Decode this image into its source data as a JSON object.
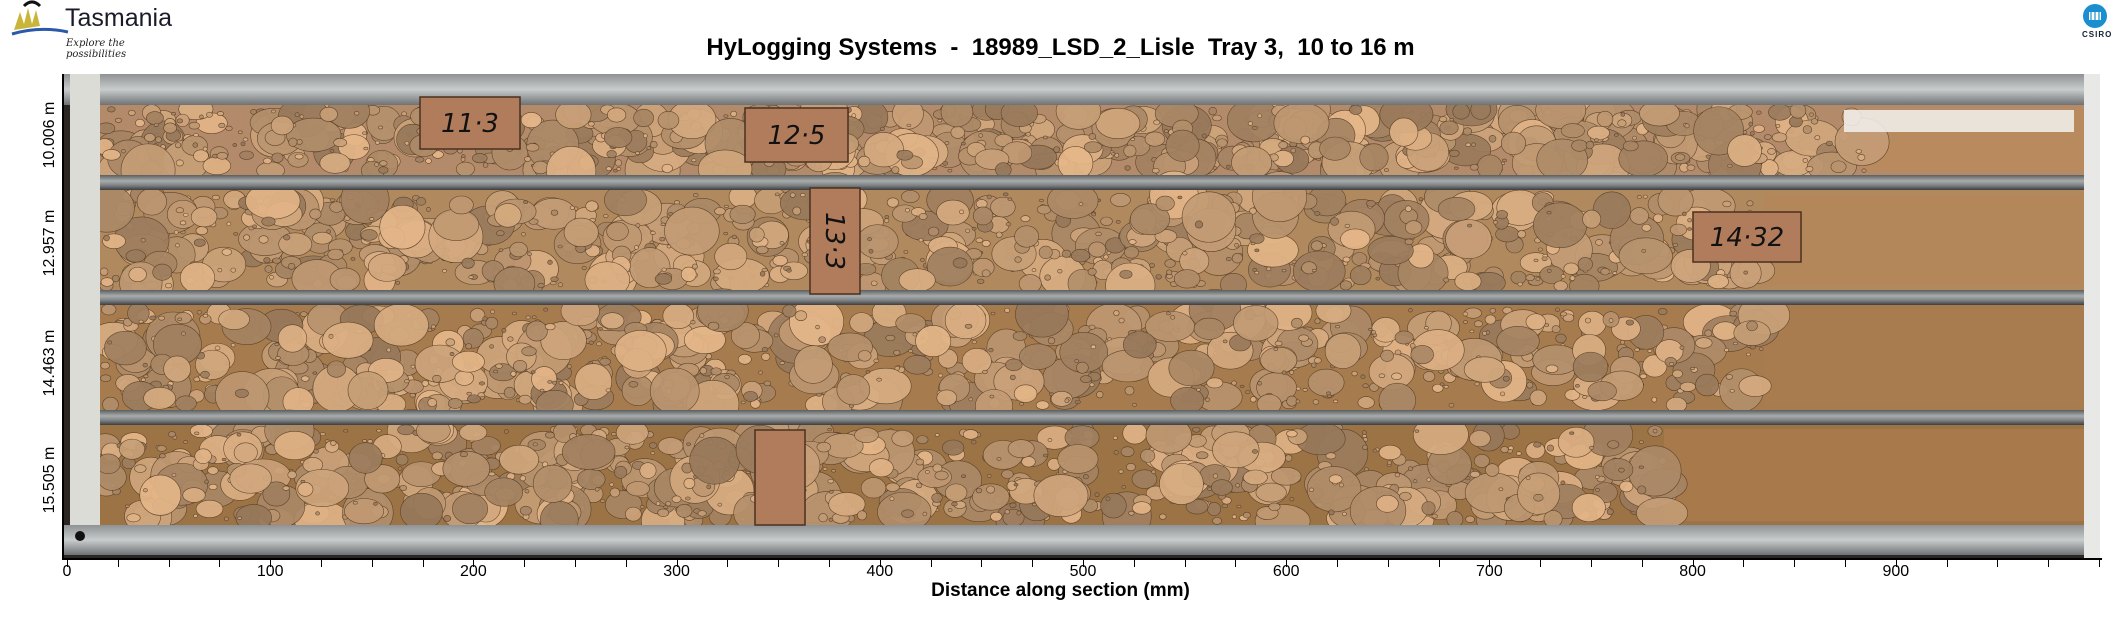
{
  "title": "HyLogging Systems  -  18989_LSD_2_Lisle  Tray 3,  10 to 16 m",
  "logos": {
    "left": {
      "name": "Tasmania",
      "tagline": "Explore the possibilities"
    },
    "right": {
      "name": "CSIRO"
    }
  },
  "rows": [
    {
      "depth_label": "10.006 m",
      "color": "#b38a6a"
    },
    {
      "depth_label": "12.957 m",
      "color": "#b0895e"
    },
    {
      "depth_label": "14.463 m",
      "color": "#a67c4e"
    },
    {
      "depth_label": "15.505 m",
      "color": "#9c7344"
    }
  ],
  "depth_markers": [
    "11·3",
    "12·5",
    "13·3",
    "14·32"
  ],
  "x_axis": {
    "label": "Distance along section (mm)",
    "ticks": [
      "0",
      "100",
      "200",
      "300",
      "400",
      "500",
      "600",
      "700",
      "800",
      "900"
    ],
    "range_mm": [
      0,
      1000
    ],
    "minor_step_mm": 25
  }
}
